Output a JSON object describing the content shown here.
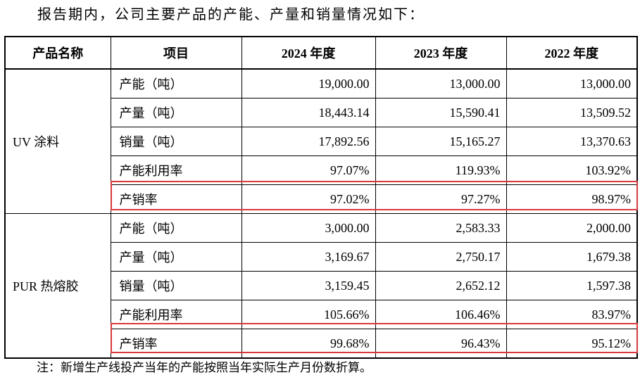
{
  "intro": "报告期内，公司主要产品的产能、产量和销量情况如下：",
  "headers": [
    "产品名称",
    "项目",
    "2024 年度",
    "2023 年度",
    "2022 年度"
  ],
  "groups": [
    {
      "product": "UV 涂料",
      "rows": [
        {
          "item": "产能（吨）",
          "v2024": "19,000.00",
          "v2023": "13,000.00",
          "v2022": "13,000.00"
        },
        {
          "item": "产量（吨）",
          "v2024": "18,443.14",
          "v2023": "15,590.41",
          "v2022": "13,509.52"
        },
        {
          "item": "销量（吨）",
          "v2024": "17,892.56",
          "v2023": "15,165.27",
          "v2022": "13,370.63"
        },
        {
          "item": "产能利用率",
          "v2024": "97.07%",
          "v2023": "119.93%",
          "v2022": "103.92%"
        },
        {
          "item": "产销率",
          "v2024": "97.02%",
          "v2023": "97.27%",
          "v2022": "98.97%"
        }
      ]
    },
    {
      "product": "PUR 热熔胶",
      "rows": [
        {
          "item": "产能（吨）",
          "v2024": "3,000.00",
          "v2023": "2,583.33",
          "v2022": "2,000.00"
        },
        {
          "item": "产量（吨）",
          "v2024": "3,169.67",
          "v2023": "2,750.17",
          "v2022": "1,679.38"
        },
        {
          "item": "销量（吨）",
          "v2024": "3,159.45",
          "v2023": "2,652.12",
          "v2022": "1,597.38"
        },
        {
          "item": "产能利用率",
          "v2024": "105.66%",
          "v2023": "106.46%",
          "v2022": "83.97%"
        },
        {
          "item": "产销率",
          "v2024": "99.68%",
          "v2023": "96.43%",
          "v2022": "95.12%"
        }
      ]
    }
  ],
  "note": "注：新增生产线投产当年的产能按照当年实际生产月份数折算。",
  "highlight_color": "#d9393c"
}
